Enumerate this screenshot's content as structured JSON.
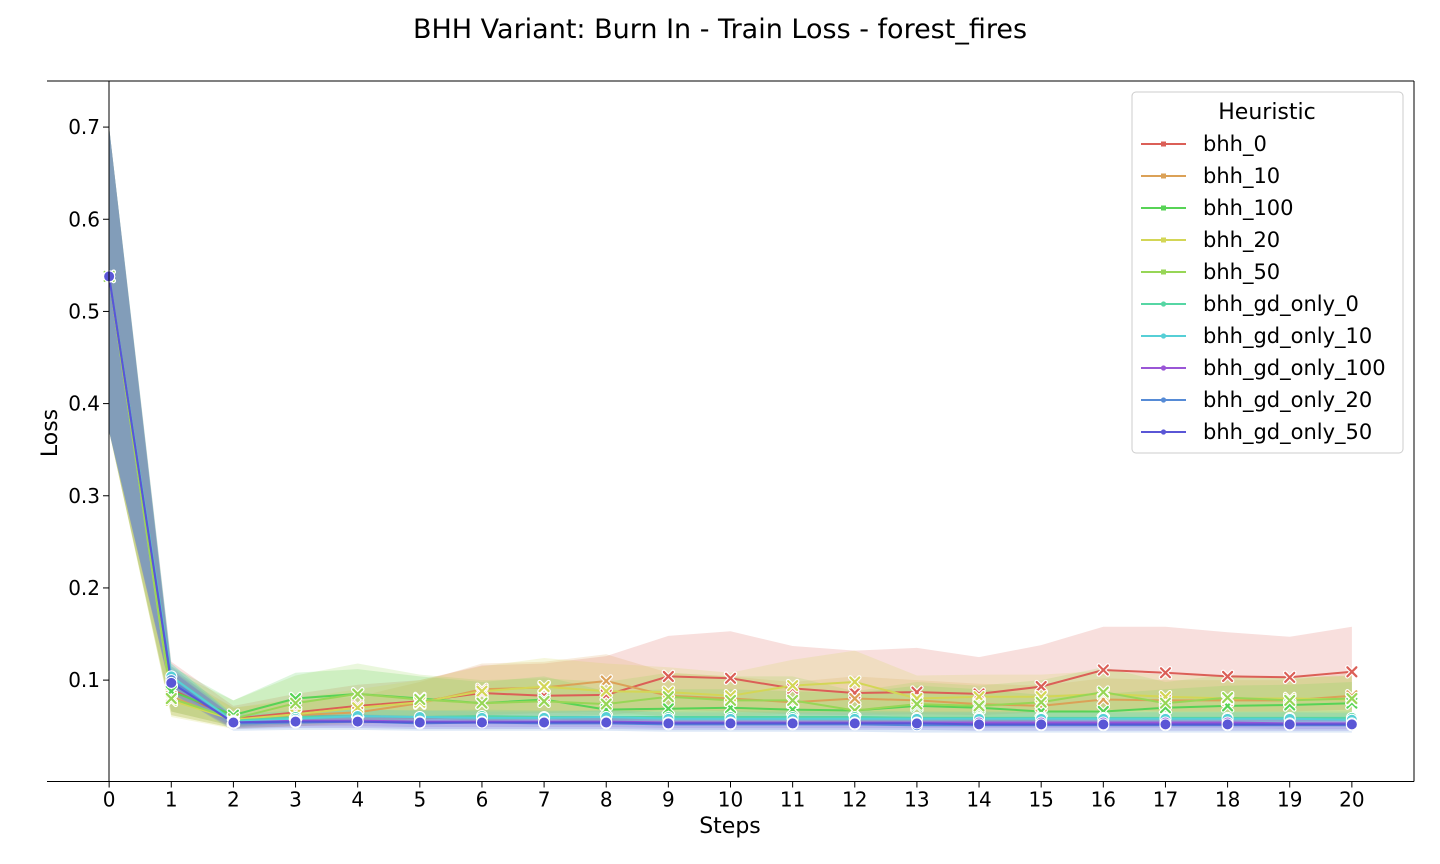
{
  "chart_data": {
    "type": "line",
    "title": "BHH Variant: Burn In - Train Loss - forest_fires",
    "xlabel": "Steps",
    "ylabel": "Loss",
    "xlim": [
      -1,
      21
    ],
    "ylim": [
      -0.01,
      0.75
    ],
    "x": [
      0,
      1,
      2,
      3,
      4,
      5,
      6,
      7,
      8,
      9,
      10,
      11,
      12,
      13,
      14,
      15,
      16,
      17,
      18,
      19,
      20
    ],
    "xticks": [
      "0",
      "1",
      "2",
      "3",
      "4",
      "5",
      "6",
      "7",
      "8",
      "9",
      "10",
      "11",
      "12",
      "13",
      "14",
      "15",
      "16",
      "17",
      "18",
      "19",
      "20"
    ],
    "yticks": [
      0.1,
      0.2,
      0.3,
      0.4,
      0.5,
      0.6,
      0.7
    ],
    "ytick_labels": [
      "0.1",
      "0.2",
      "0.3",
      "0.4",
      "0.5",
      "0.6",
      "0.7"
    ],
    "grid": false,
    "legend": {
      "title": "Heuristic",
      "position": "top-right"
    },
    "series": [
      {
        "name": "bhh_0",
        "color": "#db5f57",
        "marker": "x",
        "values": [
          0.538,
          0.09,
          0.058,
          0.065,
          0.072,
          0.077,
          0.086,
          0.083,
          0.084,
          0.104,
          0.102,
          0.091,
          0.086,
          0.087,
          0.085,
          0.093,
          0.111,
          0.108,
          0.104,
          0.103,
          0.109
        ],
        "band_low": [
          0.37,
          0.066,
          0.05,
          0.052,
          0.055,
          0.058,
          0.062,
          0.06,
          0.062,
          0.068,
          0.066,
          0.063,
          0.062,
          0.063,
          0.062,
          0.065,
          0.068,
          0.066,
          0.066,
          0.066,
          0.068
        ],
        "band_high": [
          0.7,
          0.12,
          0.072,
          0.085,
          0.095,
          0.1,
          0.116,
          0.118,
          0.126,
          0.148,
          0.153,
          0.137,
          0.132,
          0.135,
          0.125,
          0.138,
          0.158,
          0.158,
          0.152,
          0.147,
          0.158
        ]
      },
      {
        "name": "bhh_10",
        "color": "#dba157",
        "marker": "x",
        "values": [
          0.538,
          0.082,
          0.056,
          0.062,
          0.065,
          0.075,
          0.09,
          0.092,
          0.099,
          0.083,
          0.08,
          0.076,
          0.08,
          0.078,
          0.074,
          0.072,
          0.079,
          0.078,
          0.078,
          0.078,
          0.083
        ],
        "band_low": [
          0.37,
          0.062,
          0.048,
          0.05,
          0.052,
          0.056,
          0.062,
          0.064,
          0.066,
          0.06,
          0.058,
          0.057,
          0.058,
          0.058,
          0.056,
          0.056,
          0.058,
          0.058,
          0.058,
          0.058,
          0.06
        ],
        "band_high": [
          0.7,
          0.11,
          0.07,
          0.078,
          0.082,
          0.098,
          0.118,
          0.12,
          0.128,
          0.108,
          0.104,
          0.098,
          0.104,
          0.1,
          0.096,
          0.094,
          0.102,
          0.1,
          0.1,
          0.1,
          0.108
        ]
      },
      {
        "name": "bhh_100",
        "color": "#57d356",
        "marker": "x",
        "values": [
          0.538,
          0.088,
          0.062,
          0.08,
          0.085,
          0.08,
          0.075,
          0.079,
          0.068,
          0.069,
          0.07,
          0.068,
          0.067,
          0.072,
          0.07,
          0.066,
          0.066,
          0.07,
          0.072,
          0.073,
          0.075
        ],
        "band_low": [
          0.37,
          0.066,
          0.05,
          0.058,
          0.06,
          0.058,
          0.056,
          0.058,
          0.054,
          0.054,
          0.055,
          0.054,
          0.054,
          0.055,
          0.054,
          0.053,
          0.053,
          0.054,
          0.055,
          0.055,
          0.056
        ],
        "band_high": [
          0.7,
          0.115,
          0.078,
          0.108,
          0.112,
          0.104,
          0.098,
          0.104,
          0.088,
          0.09,
          0.09,
          0.088,
          0.086,
          0.094,
          0.09,
          0.084,
          0.085,
          0.09,
          0.094,
          0.095,
          0.098
        ]
      },
      {
        "name": "bhh_20",
        "color": "#d3d656",
        "marker": "x",
        "values": [
          0.538,
          0.078,
          0.057,
          0.063,
          0.07,
          0.076,
          0.088,
          0.093,
          0.088,
          0.087,
          0.083,
          0.094,
          0.098,
          0.08,
          0.082,
          0.082,
          0.085,
          0.082,
          0.08,
          0.08,
          0.079
        ],
        "band_low": [
          0.37,
          0.06,
          0.047,
          0.05,
          0.054,
          0.057,
          0.062,
          0.065,
          0.062,
          0.062,
          0.06,
          0.064,
          0.066,
          0.058,
          0.06,
          0.06,
          0.061,
          0.06,
          0.059,
          0.059,
          0.058
        ],
        "band_high": [
          0.7,
          0.105,
          0.07,
          0.08,
          0.09,
          0.1,
          0.115,
          0.124,
          0.118,
          0.114,
          0.108,
          0.122,
          0.132,
          0.105,
          0.106,
          0.106,
          0.11,
          0.106,
          0.104,
          0.104,
          0.104
        ]
      },
      {
        "name": "bhh_50",
        "color": "#97d656",
        "marker": "x",
        "values": [
          0.538,
          0.08,
          0.058,
          0.075,
          0.085,
          0.079,
          0.075,
          0.077,
          0.074,
          0.082,
          0.078,
          0.078,
          0.067,
          0.074,
          0.072,
          0.076,
          0.087,
          0.075,
          0.081,
          0.078,
          0.08
        ],
        "band_low": [
          0.37,
          0.062,
          0.048,
          0.056,
          0.06,
          0.058,
          0.056,
          0.057,
          0.056,
          0.058,
          0.057,
          0.057,
          0.054,
          0.056,
          0.055,
          0.056,
          0.06,
          0.056,
          0.058,
          0.057,
          0.058
        ],
        "band_high": [
          0.7,
          0.11,
          0.078,
          0.105,
          0.118,
          0.106,
          0.1,
          0.102,
          0.098,
          0.108,
          0.104,
          0.104,
          0.088,
          0.098,
          0.094,
          0.1,
          0.114,
          0.098,
          0.106,
          0.102,
          0.105
        ]
      },
      {
        "name": "bhh_gd_only_0",
        "color": "#56d6a4",
        "marker": "o",
        "values": [
          0.538,
          0.104,
          0.056,
          0.06,
          0.061,
          0.06,
          0.061,
          0.06,
          0.06,
          0.06,
          0.06,
          0.06,
          0.06,
          0.059,
          0.059,
          0.059,
          0.059,
          0.059,
          0.059,
          0.059,
          0.059
        ],
        "band_low": [
          0.37,
          0.09,
          0.05,
          0.054,
          0.055,
          0.054,
          0.055,
          0.054,
          0.054,
          0.054,
          0.054,
          0.054,
          0.054,
          0.053,
          0.053,
          0.053,
          0.053,
          0.053,
          0.053,
          0.053,
          0.053
        ],
        "band_high": [
          0.7,
          0.118,
          0.063,
          0.067,
          0.068,
          0.067,
          0.068,
          0.067,
          0.067,
          0.067,
          0.067,
          0.067,
          0.067,
          0.066,
          0.066,
          0.066,
          0.066,
          0.066,
          0.066,
          0.066,
          0.066
        ]
      },
      {
        "name": "bhh_gd_only_10",
        "color": "#56cfd6",
        "marker": "o",
        "values": [
          0.538,
          0.104,
          0.055,
          0.058,
          0.061,
          0.06,
          0.059,
          0.059,
          0.06,
          0.058,
          0.058,
          0.058,
          0.058,
          0.058,
          0.058,
          0.058,
          0.058,
          0.058,
          0.058,
          0.058,
          0.057
        ],
        "band_low": [
          0.37,
          0.09,
          0.049,
          0.052,
          0.054,
          0.053,
          0.052,
          0.052,
          0.053,
          0.051,
          0.051,
          0.051,
          0.051,
          0.051,
          0.051,
          0.051,
          0.051,
          0.051,
          0.051,
          0.051,
          0.05
        ],
        "band_high": [
          0.7,
          0.118,
          0.062,
          0.065,
          0.068,
          0.067,
          0.066,
          0.066,
          0.067,
          0.065,
          0.065,
          0.065,
          0.065,
          0.065,
          0.065,
          0.065,
          0.065,
          0.065,
          0.065,
          0.065,
          0.064
        ]
      },
      {
        "name": "bhh_gd_only_100",
        "color": "#9a56d6",
        "marker": "o",
        "values": [
          0.538,
          0.098,
          0.054,
          0.056,
          0.056,
          0.055,
          0.055,
          0.055,
          0.055,
          0.054,
          0.054,
          0.054,
          0.054,
          0.054,
          0.054,
          0.054,
          0.054,
          0.054,
          0.054,
          0.053,
          0.053
        ],
        "band_low": [
          0.37,
          0.086,
          0.048,
          0.05,
          0.05,
          0.049,
          0.049,
          0.049,
          0.049,
          0.048,
          0.048,
          0.048,
          0.048,
          0.048,
          0.048,
          0.048,
          0.048,
          0.048,
          0.048,
          0.047,
          0.047
        ],
        "band_high": [
          0.7,
          0.112,
          0.06,
          0.062,
          0.062,
          0.061,
          0.061,
          0.061,
          0.061,
          0.06,
          0.06,
          0.06,
          0.06,
          0.06,
          0.06,
          0.06,
          0.06,
          0.06,
          0.06,
          0.059,
          0.059
        ]
      },
      {
        "name": "bhh_gd_only_20",
        "color": "#568bd6",
        "marker": "o",
        "values": [
          0.538,
          0.1,
          0.053,
          0.054,
          0.055,
          0.053,
          0.054,
          0.053,
          0.053,
          0.052,
          0.052,
          0.052,
          0.052,
          0.051,
          0.051,
          0.051,
          0.051,
          0.051,
          0.051,
          0.051,
          0.051
        ],
        "band_low": [
          0.37,
          0.086,
          0.045,
          0.046,
          0.046,
          0.045,
          0.045,
          0.045,
          0.045,
          0.044,
          0.044,
          0.044,
          0.044,
          0.043,
          0.043,
          0.043,
          0.043,
          0.043,
          0.043,
          0.043,
          0.043
        ],
        "band_high": [
          0.7,
          0.115,
          0.061,
          0.062,
          0.063,
          0.061,
          0.062,
          0.061,
          0.061,
          0.06,
          0.06,
          0.06,
          0.06,
          0.059,
          0.059,
          0.059,
          0.059,
          0.059,
          0.059,
          0.059,
          0.059
        ]
      },
      {
        "name": "bhh_gd_only_50",
        "color": "#5a56d6",
        "marker": "o",
        "values": [
          0.538,
          0.097,
          0.054,
          0.055,
          0.055,
          0.054,
          0.054,
          0.054,
          0.054,
          0.053,
          0.053,
          0.053,
          0.053,
          0.053,
          0.052,
          0.052,
          0.052,
          0.052,
          0.052,
          0.052,
          0.052
        ],
        "band_low": [
          0.37,
          0.085,
          0.047,
          0.048,
          0.048,
          0.047,
          0.047,
          0.047,
          0.047,
          0.046,
          0.046,
          0.046,
          0.046,
          0.046,
          0.045,
          0.045,
          0.045,
          0.045,
          0.045,
          0.045,
          0.045
        ],
        "band_high": [
          0.7,
          0.11,
          0.061,
          0.062,
          0.062,
          0.061,
          0.061,
          0.061,
          0.061,
          0.06,
          0.06,
          0.06,
          0.06,
          0.06,
          0.059,
          0.059,
          0.059,
          0.059,
          0.059,
          0.059,
          0.059
        ]
      }
    ]
  }
}
